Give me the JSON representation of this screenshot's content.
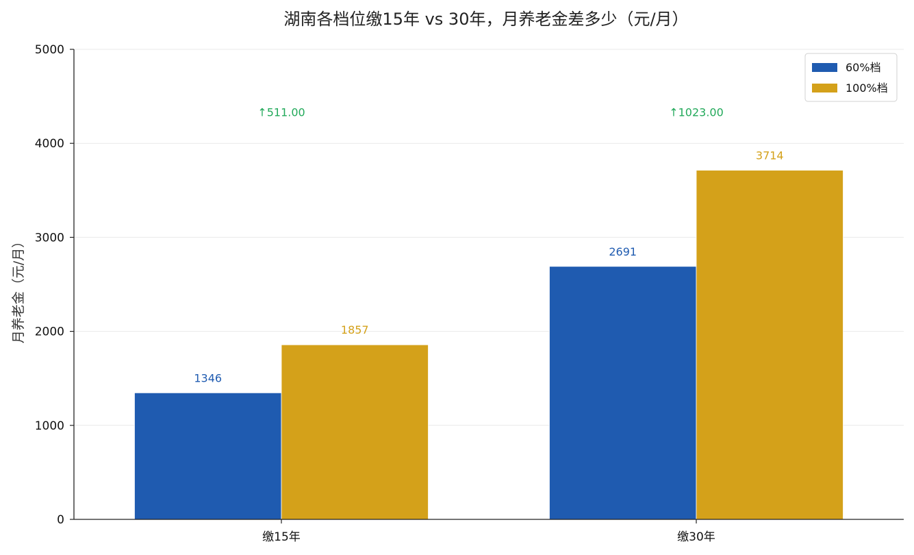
{
  "chart_data": {
    "type": "bar",
    "title": "湖南各档位缴15年 vs 30年，月养老金差多少（元/月）",
    "xlabel": "",
    "ylabel": "月养老金（元/月）",
    "categories": [
      "缴15年",
      "缴30年"
    ],
    "series": [
      {
        "name": "60%档",
        "values": [
          1346,
          2691
        ],
        "color": "#1f5bb0"
      },
      {
        "name": "100%档",
        "values": [
          1857,
          3714
        ],
        "color": "#d4a11a"
      }
    ],
    "differences": [
      "↑511.00",
      "↑1023.00"
    ],
    "difference_color": "#22a95a",
    "ylim": [
      0,
      5000
    ],
    "yticks": [
      0,
      1000,
      2000,
      3000,
      4000,
      5000
    ],
    "grid": true,
    "legend_position": "top-right"
  }
}
